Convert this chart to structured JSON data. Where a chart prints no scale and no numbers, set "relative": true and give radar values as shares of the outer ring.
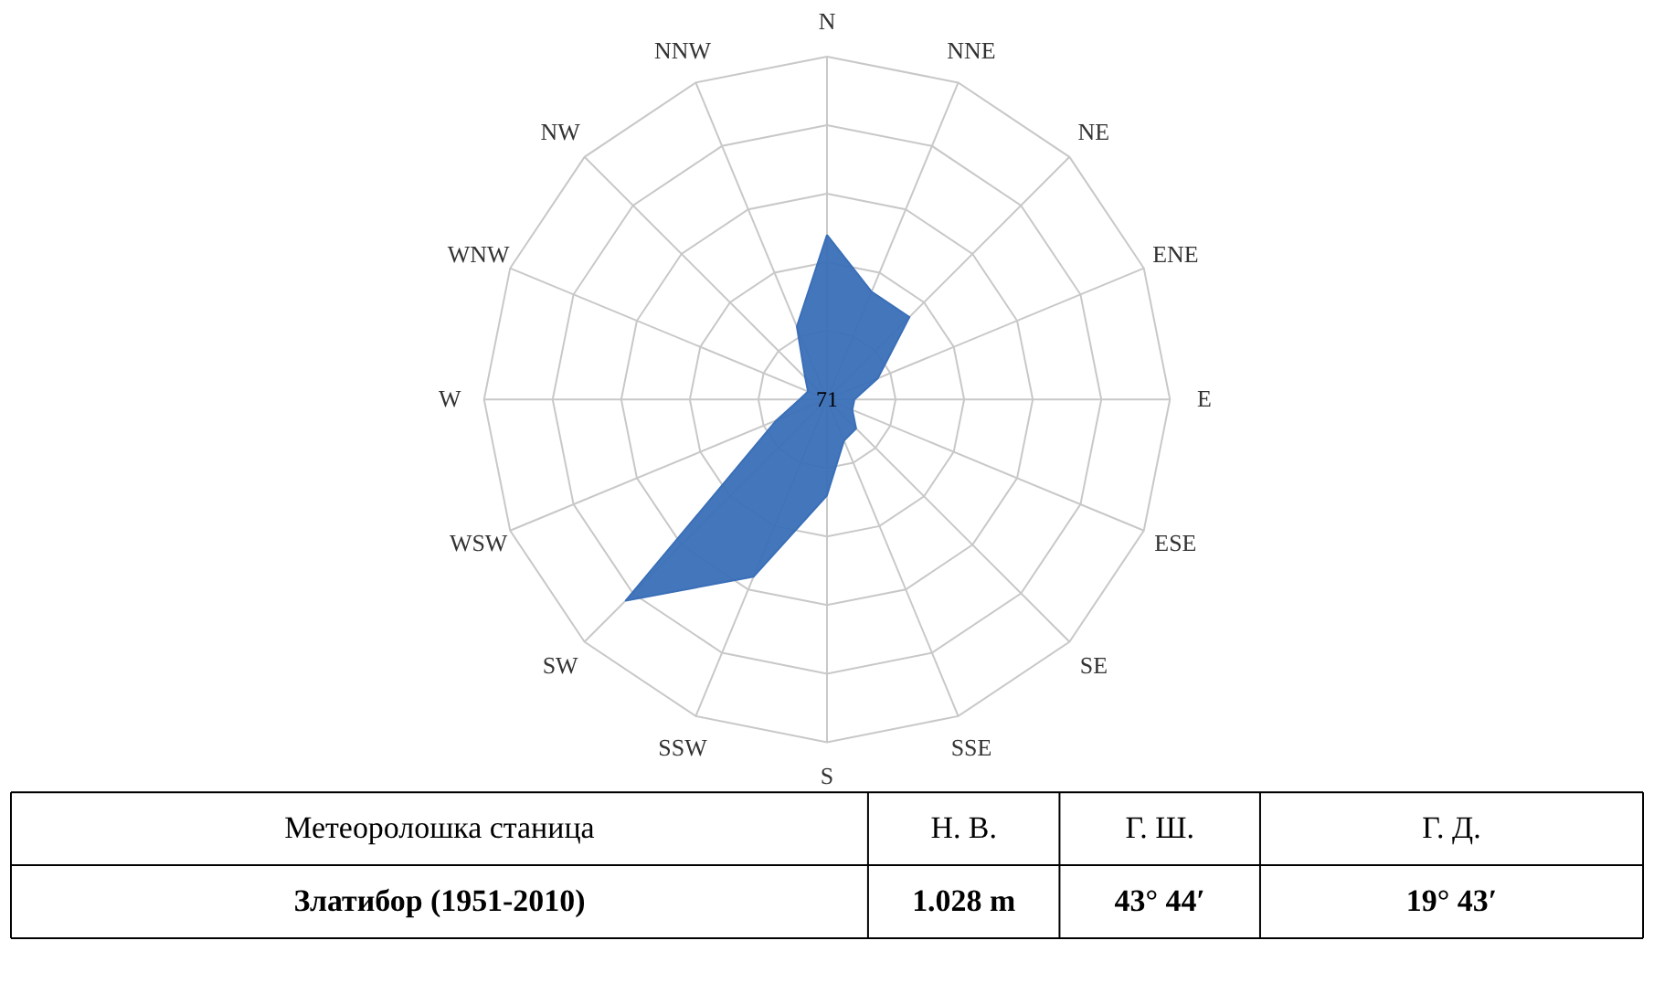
{
  "chart_data": {
    "type": "radar",
    "relative": true,
    "categories": [
      "N",
      "NNE",
      "NE",
      "ENE",
      "E",
      "ESE",
      "SE",
      "SSE",
      "S",
      "SSW",
      "SW",
      "WSW",
      "W",
      "WNW",
      "NW",
      "NNW"
    ],
    "series": [
      {
        "color": "#3a6fb8",
        "values": [
          0.48,
          0.34,
          0.34,
          0.16,
          0.08,
          0.08,
          0.12,
          0.13,
          0.28,
          0.56,
          0.83,
          0.16,
          0.08,
          0.06,
          0.09,
          0.23
        ]
      }
    ],
    "grid": true,
    "annotations": [
      "71",
      "Метеоролошка станица",
      "Н. В.",
      "Г. Ш.",
      "Г. Д.",
      "Златибор (1951-2010)",
      "1.028 m",
      "43° 44′",
      "19° 43′"
    ]
  }
}
